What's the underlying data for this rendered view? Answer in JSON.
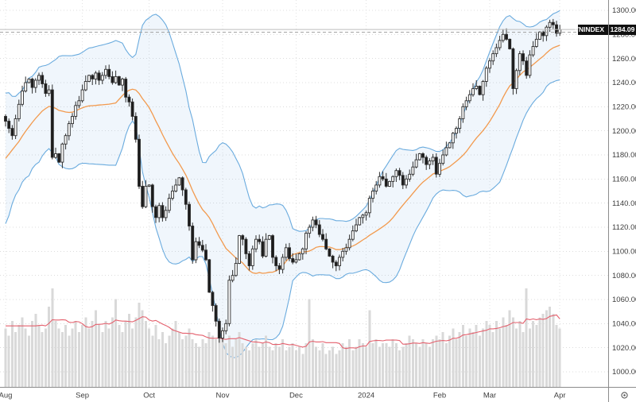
{
  "symbol_badge": {
    "symbol": "VNINDEX",
    "last_price_label": "1284.09"
  },
  "corner_icon": "gear",
  "colors": {
    "background": "#ffffff",
    "grid": "#dcdcdc",
    "month_grid": "#e2e2e2",
    "candle_up_fill": "#ffffff",
    "candle_down_fill": "#1b1b1b",
    "candle_border": "#2e2e2e",
    "wick": "#2e2e2e",
    "bb_line": "#6aabde",
    "bb_fill": "rgba(106,171,222,0.10)",
    "bb_mid": "#f29a4e",
    "volume_bar": "#d9d9d9",
    "volume_ma": "#e4606d",
    "axis_line": "#8c8c8c",
    "tick_text": "#3d3d3d",
    "last_price_line": "#bdbdbd",
    "dashed_ref_line": "#9e9e9e",
    "badge_bg": "#101010",
    "badge_text": "#ffffff"
  },
  "price_lines": [
    {
      "price": 1284.09,
      "style": "solid",
      "name": "last-price-line"
    },
    {
      "price": 1281.8,
      "style": "dashed",
      "name": "reference-dashed-line"
    }
  ],
  "chart_data": {
    "type": "candlestick",
    "title": "VNINDEX",
    "legend_position": "none",
    "grid": true,
    "indicators": [
      "bollinger_bands(20,2)",
      "sma_20",
      "volume",
      "volume_sma_10"
    ],
    "y_axis": {
      "min": 1000,
      "max": 1300,
      "tick_step": 20,
      "label_decimals": 2
    },
    "x_axis": {
      "months": [
        {
          "label": "Aug",
          "index": 0
        },
        {
          "label": "Sep",
          "index": 23
        },
        {
          "label": "Oct",
          "index": 43
        },
        {
          "label": "Nov",
          "index": 65
        },
        {
          "label": "Dec",
          "index": 87
        },
        {
          "label": "2024",
          "index": 108
        },
        {
          "label": "Feb",
          "index": 130
        },
        {
          "label": "Mar",
          "index": 145
        },
        {
          "label": "Apr",
          "index": 166
        }
      ]
    },
    "last_close": 1284.09,
    "first_open": 1212,
    "indicator_warmup_closes": [
      1120,
      1132,
      1125,
      1140,
      1152,
      1145,
      1158,
      1170,
      1162,
      1175,
      1185,
      1178,
      1190,
      1198,
      1192,
      1200,
      1208,
      1202,
      1210,
      1212
    ],
    "series": {
      "close": [
        1208,
        1202,
        1196,
        1210,
        1222,
        1233,
        1240,
        1243,
        1236,
        1242,
        1246,
        1239,
        1231,
        1234,
        1178,
        1181,
        1174,
        1189,
        1196,
        1206,
        1212,
        1221,
        1225,
        1234,
        1241,
        1246,
        1243,
        1248,
        1242,
        1246,
        1251,
        1245,
        1240,
        1245,
        1238,
        1243,
        1228,
        1224,
        1212,
        1193,
        1154,
        1137,
        1154,
        1155,
        1137,
        1128,
        1138,
        1128,
        1134,
        1144,
        1150,
        1155,
        1161,
        1151,
        1139,
        1121,
        1093,
        1108,
        1105,
        1101,
        1093,
        1066,
        1055,
        1042,
        1028,
        1034,
        1040,
        1076,
        1080,
        1090,
        1113,
        1110,
        1098,
        1088,
        1102,
        1110,
        1108,
        1096,
        1110,
        1113,
        1095,
        1088,
        1085,
        1095,
        1103,
        1094,
        1091,
        1093,
        1098,
        1102,
        1115,
        1120,
        1126,
        1122,
        1114,
        1110,
        1102,
        1096,
        1091,
        1088,
        1095,
        1100,
        1103,
        1110,
        1117,
        1122,
        1128,
        1130,
        1132,
        1144,
        1150,
        1155,
        1162,
        1160,
        1154,
        1158,
        1162,
        1167,
        1163,
        1155,
        1160,
        1164,
        1170,
        1176,
        1181,
        1178,
        1172,
        1175,
        1178,
        1164,
        1173,
        1180,
        1186,
        1190,
        1198,
        1202,
        1210,
        1220,
        1225,
        1230,
        1235,
        1237,
        1230,
        1241,
        1252,
        1258,
        1264,
        1269,
        1275,
        1280,
        1276,
        1268,
        1235,
        1250,
        1264,
        1258,
        1246,
        1263,
        1270,
        1276,
        1282,
        1279,
        1286,
        1290,
        1288,
        1281,
        1284.09
      ],
      "volume": [
        16,
        14,
        18,
        15,
        17,
        19,
        16,
        14,
        18,
        20,
        17,
        15,
        16,
        22,
        27,
        18,
        16,
        15,
        17,
        14,
        16,
        18,
        15,
        17,
        19,
        16,
        18,
        21,
        17,
        15,
        18,
        16,
        19,
        24,
        17,
        15,
        18,
        20,
        16,
        19,
        23,
        21,
        18,
        16,
        14,
        17,
        13,
        15,
        12,
        14,
        16,
        18,
        15,
        13,
        14,
        16,
        13,
        12,
        11,
        13,
        12,
        15,
        14,
        13,
        15,
        13,
        12,
        14,
        11,
        13,
        15,
        12,
        11,
        10,
        12,
        13,
        11,
        12,
        14,
        11,
        10,
        12,
        11,
        13,
        10,
        11,
        12,
        10,
        11,
        9,
        12,
        24,
        13,
        11,
        10,
        12,
        9,
        10,
        11,
        9,
        10,
        12,
        11,
        13,
        10,
        11,
        13,
        12,
        11,
        21,
        12,
        13,
        11,
        12,
        12,
        11,
        13,
        12,
        10,
        11,
        12,
        14,
        13,
        12,
        11,
        13,
        12,
        11,
        13,
        14,
        13,
        15,
        12,
        14,
        16,
        13,
        15,
        17,
        14,
        16,
        15,
        17,
        14,
        16,
        18,
        17,
        15,
        18,
        16,
        19,
        17,
        21,
        19,
        16,
        18,
        15,
        27,
        16,
        18,
        17,
        19,
        20,
        21,
        22,
        20,
        17,
        16
      ]
    }
  }
}
